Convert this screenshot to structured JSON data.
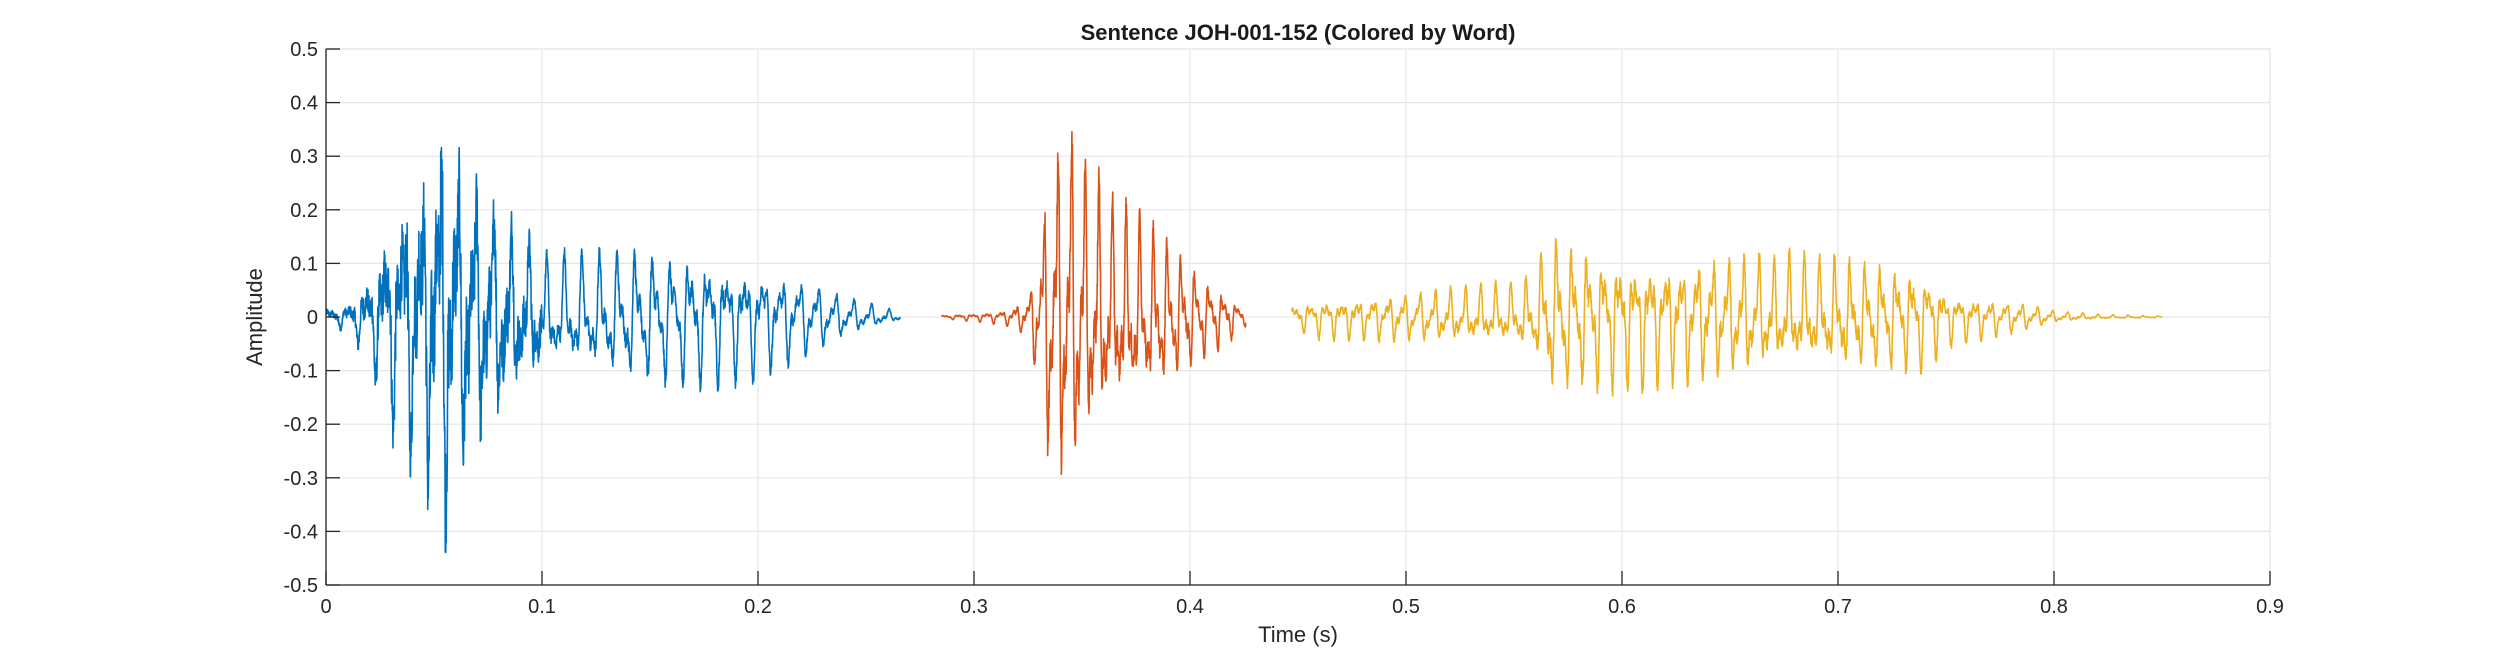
{
  "chart_data": {
    "type": "line",
    "title": "Sentence JOH-001-152 (Colored by Word)",
    "xlabel": "Time (s)",
    "ylabel": "Amplitude",
    "xlim": [
      0,
      0.9
    ],
    "ylim": [
      -0.5,
      0.5
    ],
    "grid": true,
    "x_ticks": [
      0,
      0.1,
      0.2,
      0.3,
      0.4,
      0.5,
      0.6,
      0.7,
      0.8,
      0.9
    ],
    "x_tick_labels": [
      "0",
      "0.1",
      "0.2",
      "0.3",
      "0.4",
      "0.5",
      "0.6",
      "0.7",
      "0.8",
      "0.9"
    ],
    "y_ticks": [
      -0.5,
      -0.4,
      -0.3,
      -0.2,
      -0.1,
      0,
      0.1,
      0.2,
      0.3,
      0.4,
      0.5
    ],
    "y_tick_labels": [
      "-0.5",
      "-0.4",
      "-0.3",
      "-0.2",
      "-0.1",
      "0",
      "0.1",
      "0.2",
      "0.3",
      "0.4",
      "0.5"
    ],
    "series": [
      {
        "color": "#0072BD",
        "x_range": [
          0.0,
          0.266
        ],
        "envelope": [
          [
            0.0,
            0.02
          ],
          [
            0.01,
            0.03
          ],
          [
            0.02,
            0.1
          ],
          [
            0.03,
            0.25
          ],
          [
            0.04,
            0.32
          ],
          [
            0.05,
            0.42
          ],
          [
            0.055,
            0.47
          ],
          [
            0.06,
            0.38
          ],
          [
            0.07,
            0.3
          ],
          [
            0.08,
            0.24
          ],
          [
            0.09,
            0.18
          ],
          [
            0.1,
            0.14
          ],
          [
            0.12,
            0.15
          ],
          [
            0.14,
            0.16
          ],
          [
            0.16,
            0.17
          ],
          [
            0.18,
            0.16
          ],
          [
            0.2,
            0.14
          ],
          [
            0.22,
            0.1
          ],
          [
            0.24,
            0.05
          ],
          [
            0.266,
            0.01
          ]
        ]
      },
      {
        "color": "#D95319",
        "x_range": [
          0.285,
          0.426
        ],
        "envelope": [
          [
            0.285,
            0.005
          ],
          [
            0.3,
            0.01
          ],
          [
            0.315,
            0.02
          ],
          [
            0.325,
            0.05
          ],
          [
            0.33,
            0.18
          ],
          [
            0.335,
            0.38
          ],
          [
            0.34,
            0.45
          ],
          [
            0.345,
            0.46
          ],
          [
            0.35,
            0.4
          ],
          [
            0.36,
            0.3
          ],
          [
            0.37,
            0.26
          ],
          [
            0.38,
            0.22
          ],
          [
            0.39,
            0.18
          ],
          [
            0.4,
            0.13
          ],
          [
            0.41,
            0.09
          ],
          [
            0.42,
            0.05
          ],
          [
            0.426,
            0.02
          ]
        ]
      },
      {
        "color": "#EDB120",
        "x_range": [
          0.447,
          0.85
        ],
        "envelope": [
          [
            0.447,
            0.03
          ],
          [
            0.46,
            0.05
          ],
          [
            0.48,
            0.055
          ],
          [
            0.5,
            0.06
          ],
          [
            0.52,
            0.07
          ],
          [
            0.55,
            0.08
          ],
          [
            0.56,
            0.1
          ],
          [
            0.565,
            0.2
          ],
          [
            0.58,
            0.18
          ],
          [
            0.6,
            0.17
          ],
          [
            0.65,
            0.15
          ],
          [
            0.7,
            0.14
          ],
          [
            0.74,
            0.13
          ],
          [
            0.75,
            0.07
          ],
          [
            0.77,
            0.05
          ],
          [
            0.79,
            0.03
          ],
          [
            0.8,
            0.015
          ],
          [
            0.82,
            0.006
          ],
          [
            0.85,
            0.002
          ]
        ]
      }
    ]
  }
}
